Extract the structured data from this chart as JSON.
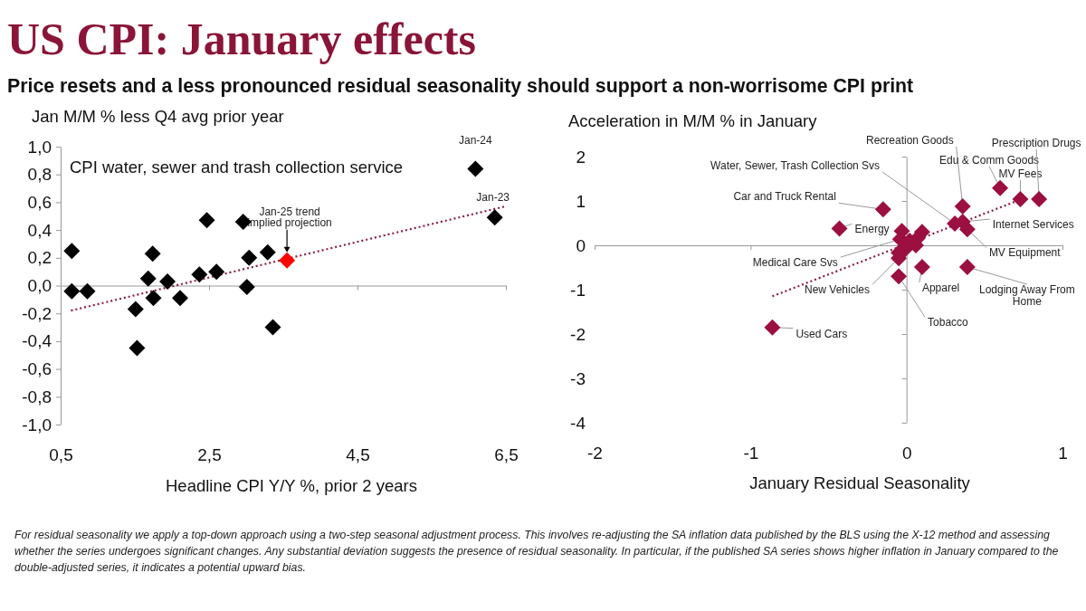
{
  "chart_data": [
    {
      "type": "scatter",
      "title": "US CPI: January effects",
      "subtitle": "Price resets and a less pronounced residual seasonality should support a non-worrisome CPI print",
      "ylabel": "Jan M/M % less Q4 avg prior year",
      "xlabel": "Headline CPI Y/Y %, prior 2 years",
      "xlim": [
        0.5,
        6.5
      ],
      "xticks": [
        {
          "value": 0.5,
          "label": "0,5"
        },
        {
          "value": 2.5,
          "label": "2,5"
        },
        {
          "value": 4.5,
          "label": "4,5"
        },
        {
          "value": 6.5,
          "label": "6,5"
        }
      ],
      "ylim": [
        -1,
        1
      ],
      "yticks": [
        {
          "value": -1,
          "label": "-1,0"
        },
        {
          "value": -0.8,
          "label": "-0,8"
        },
        {
          "value": -0.6,
          "label": "-0,6"
        },
        {
          "value": -0.4,
          "label": "-0,4"
        },
        {
          "value": -0.2,
          "label": "-0,2"
        },
        {
          "value": 0,
          "label": "0,0"
        },
        {
          "value": 0.2,
          "label": "0,2"
        },
        {
          "value": 0.4,
          "label": "0,4"
        },
        {
          "value": 0.6,
          "label": "0,6"
        },
        {
          "value": 0.8,
          "label": "0,8"
        },
        {
          "value": 1,
          "label": "1,0"
        }
      ],
      "marker": "diamond",
      "series": [
        {
          "type": "line",
          "color": "#8b1a4a",
          "line_style": "dotted",
          "marker": "none",
          "x": [
            0.64,
            6.49
          ],
          "values": [
            -0.18,
            0.57
          ]
        },
        {
          "color": "#000000",
          "x": [
            0.65,
            0.65,
            0.86,
            1.51,
            1.53,
            1.68,
            1.74,
            1.75,
            1.94,
            2.11,
            2.37,
            2.47,
            2.6,
            2.96,
            3.04,
            3.01,
            3.29,
            3.36,
            6.09,
            6.35
          ],
          "values": [
            0.25,
            -0.04,
            -0.04,
            -0.17,
            -0.45,
            0.05,
            0.23,
            -0.09,
            0.03,
            -0.09,
            0.08,
            0.47,
            0.1,
            0.46,
            0.2,
            -0.01,
            0.24,
            -0.3,
            0.84,
            0.49
          ]
        },
        {
          "color": "#ff0000",
          "x": [
            3.55
          ],
          "values": [
            0.18
          ]
        }
      ],
      "annotations": [
        "CPI water, sewer and trash collection service",
        {
          "text": "Jan-24",
          "x": 6.09,
          "y": 0.84
        },
        {
          "text": "Jan-23",
          "x": 6.35,
          "y": 0.49
        },
        {
          "text": "Jan-25 trend implied projection",
          "x": 3.55,
          "y": 0.18
        }
      ]
    },
    {
      "type": "scatter",
      "ylabel": "Acceleration in M/M % in January",
      "xlabel": "January Residual Seasonality",
      "xlim": [
        -2,
        1
      ],
      "xticks": [
        -2,
        -1,
        0,
        1
      ],
      "ylim": [
        -4,
        2
      ],
      "yticks": [
        -4,
        -3,
        -2,
        -1,
        0,
        1,
        2
      ],
      "marker": "diamond",
      "series": [
        {
          "type": "line",
          "color": "#8b1a4a",
          "line_style": "dotted",
          "marker": "none",
          "x": [
            -0.86,
            0.73
          ],
          "values": [
            -1.15,
            1.03
          ]
        },
        {
          "color": "#9b1040",
          "x": [
            -0.86,
            -0.43,
            -0.15,
            0.36,
            0.6,
            0.73,
            0.85,
            0.31,
            0.36,
            0.39,
            0.39,
            0.1,
            -0.05,
            -0.05,
            -0.04,
            -0.03,
            0.1,
            0.07,
            -0.01,
            -0.05,
            0.06,
            0.02
          ],
          "values": [
            -1.85,
            0.38,
            0.81,
            0.88,
            1.29,
            1.04,
            1.04,
            0.49,
            0.53,
            0.36,
            -0.49,
            -0.49,
            -0.7,
            -0.29,
            0.14,
            0.32,
            0.3,
            0.16,
            -0.09,
            -0.17,
            0,
            0.1
          ]
        }
      ],
      "annotations": [
        {
          "text": "Used Cars",
          "x": -0.86,
          "y": -1.85
        },
        {
          "text": "Energy",
          "x": -0.43,
          "y": 0.38
        },
        {
          "text": "Car and Truck Rental",
          "x": -0.15,
          "y": 0.81
        },
        {
          "text": "Recreation Goods",
          "x": 0.36,
          "y": 0.88
        },
        {
          "text": "Edu & Comm Goods",
          "x": 0.6,
          "y": 1.29
        },
        {
          "text": "MV Fees",
          "x": 0.73,
          "y": 1.04
        },
        {
          "text": "Prescription Drugs",
          "x": 0.85,
          "y": 1.04
        },
        {
          "text": "Water, Sewer, Trash Collection Svs",
          "x": 0.31,
          "y": 0.49
        },
        {
          "text": "Internet Services",
          "x": 0.36,
          "y": 0.53
        },
        {
          "text": "MV Equipment",
          "x": 0.39,
          "y": 0.36
        },
        {
          "text": "Lodging Away From Home",
          "x": 0.39,
          "y": -0.49
        },
        {
          "text": "Apparel",
          "x": 0.1,
          "y": -0.49
        },
        {
          "text": "Tobacco",
          "x": -0.05,
          "y": -0.7
        },
        {
          "text": "New Vehicles",
          "x": -0.05,
          "y": -0.29
        },
        {
          "text": "Medical Care Svs",
          "x": -0.04,
          "y": 0.14
        },
        "For residual seasonality we apply a top-down approach using a two-step seasonal adjustment process. This involves re-adjusting the SA inflation data published by the BLS using the X-12 method and assessing whether the series undergoes significant changes. Any substantial deviation suggests the presence of residual seasonality. In particular, if the published SA series shows higher inflation in January compared to the double-adjusted series, it indicates a potential upward bias."
      ]
    }
  ]
}
